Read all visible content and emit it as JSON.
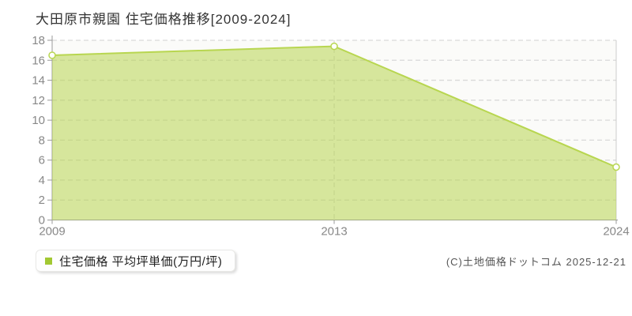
{
  "page": {
    "title": "大田原市親園 住宅価格推移[2009-2024]",
    "copyright": "(C)土地価格ドットコム 2025-12-21"
  },
  "legend": {
    "label": "住宅価格 平均坪単価(万円/坪)",
    "marker_color": "#a2c832"
  },
  "chart_data": {
    "type": "area",
    "title": "大田原市親園 住宅価格推移[2009-2024]",
    "categories": [
      "2009",
      "2013",
      "2024"
    ],
    "series": [
      {
        "name": "住宅価格 平均坪単価(万円/坪)",
        "values": [
          16.5,
          17.4,
          5.3
        ]
      }
    ],
    "xlabel": "",
    "ylabel": "平均坪単価(万円/坪)",
    "ylim": [
      0,
      18
    ],
    "ytick_step": 2,
    "grid": true,
    "legend_position": "bottom-left",
    "colors": {
      "line": "#b8d650",
      "fill_opacity": 0.55,
      "marker_fill": "#ffffff",
      "grid": "#d9d9d9",
      "right_border": "#cccccc",
      "axis": "#999999",
      "tick_label": "#888888",
      "plot_bg": "#fbfbf9"
    }
  }
}
